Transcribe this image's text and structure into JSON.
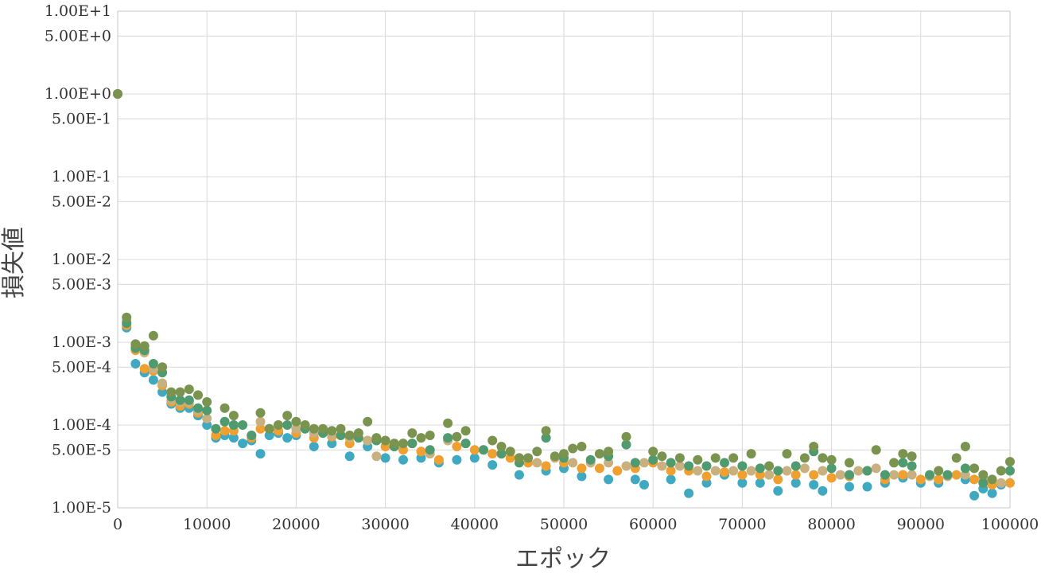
{
  "chart_data": {
    "type": "scatter",
    "xlabel": "エポック",
    "ylabel": "損失値",
    "xlim": [
      0,
      100000
    ],
    "ylim": [
      1e-05,
      10
    ],
    "y_scale": "log",
    "grid": true,
    "x_ticks": [
      0,
      10000,
      20000,
      30000,
      40000,
      50000,
      60000,
      70000,
      80000,
      90000,
      100000
    ],
    "x_tick_labels": [
      "0",
      "10000",
      "20000",
      "30000",
      "40000",
      "50000",
      "60000",
      "70000",
      "80000",
      "90000",
      "100000"
    ],
    "y_ticks": [
      10,
      5,
      1,
      0.5,
      0.1,
      0.05,
      0.01,
      0.005,
      0.001,
      0.0005,
      0.0001,
      5e-05,
      1e-05
    ],
    "y_tick_labels": [
      "1.00E+1",
      "5.00E+0",
      "1.00E+0",
      "5.00E-1",
      "1.00E-1",
      "5.00E-2",
      "1.00E-2",
      "5.00E-3",
      "1.00E-3",
      "5.00E-4",
      "1.00E-4",
      "5.00E-5",
      "1.00E-5"
    ],
    "series": [
      {
        "color": "#3fa9c1",
        "x": [
          0,
          1000,
          2000,
          3000,
          4000,
          5000,
          6000,
          7000,
          8000,
          9000,
          10000,
          11000,
          12000,
          13000,
          14000,
          15000,
          16000,
          17000,
          18000,
          19000,
          20000,
          22000,
          24000,
          26000,
          28000,
          30000,
          32000,
          34000,
          36000,
          38000,
          40000,
          42000,
          45000,
          48000,
          50000,
          52000,
          55000,
          58000,
          59000,
          62000,
          64000,
          66000,
          68000,
          70000,
          72000,
          74000,
          76000,
          78000,
          79000,
          82000,
          84000,
          86000,
          88000,
          90000,
          92000,
          95000,
          96000,
          97000,
          98000,
          99000
        ],
        "y": [
          1.0,
          0.0015,
          0.00055,
          0.00043,
          0.00035,
          0.00025,
          0.00018,
          0.00016,
          0.00016,
          0.00013,
          0.0001,
          7e-05,
          7.5e-05,
          7e-05,
          6e-05,
          6.5e-05,
          4.5e-05,
          7.5e-05,
          8e-05,
          7e-05,
          7.5e-05,
          5.5e-05,
          6e-05,
          4.2e-05,
          5.5e-05,
          4e-05,
          3.8e-05,
          4e-05,
          3.5e-05,
          3.8e-05,
          4e-05,
          3.3e-05,
          2.5e-05,
          2.8e-05,
          3e-05,
          2.4e-05,
          2.2e-05,
          2.2e-05,
          1.9e-05,
          2.2e-05,
          1.5e-05,
          2e-05,
          2.5e-05,
          2e-05,
          2e-05,
          1.6e-05,
          2e-05,
          1.9e-05,
          1.6e-05,
          1.8e-05,
          1.8e-05,
          2e-05,
          2.3e-05,
          2e-05,
          2e-05,
          2.2e-05,
          1.4e-05,
          1.7e-05,
          1.5e-05,
          1.9e-05
        ]
      },
      {
        "color": "#f0a030",
        "x": [
          0,
          1000,
          2000,
          3000,
          4000,
          5000,
          6000,
          7000,
          8000,
          9000,
          11000,
          12000,
          13000,
          15000,
          16000,
          18000,
          20000,
          22000,
          24000,
          26000,
          28000,
          30000,
          32000,
          34000,
          36000,
          38000,
          40000,
          42000,
          44000,
          46000,
          48000,
          50000,
          52000,
          54000,
          56000,
          58000,
          60000,
          62000,
          64000,
          66000,
          68000,
          70000,
          72000,
          74000,
          76000,
          78000,
          80000,
          82000,
          84000,
          86000,
          88000,
          90000,
          92000,
          94000,
          96000,
          98000,
          100000
        ],
        "y": [
          1.0,
          0.0016,
          0.0008,
          0.00048,
          0.00045,
          0.0003,
          0.00019,
          0.00017,
          0.00018,
          0.00014,
          7.5e-05,
          8.5e-05,
          8.5e-05,
          7e-05,
          9e-05,
          8.5e-05,
          8e-05,
          7e-05,
          7.2e-05,
          6e-05,
          6.5e-05,
          5.5e-05,
          5e-05,
          4.8e-05,
          3.8e-05,
          5.5e-05,
          5e-05,
          4.5e-05,
          4e-05,
          3.5e-05,
          3.2e-05,
          3.5e-05,
          3e-05,
          3e-05,
          2.8e-05,
          3e-05,
          3.5e-05,
          2.8e-05,
          2.8e-05,
          2.4e-05,
          2.7e-05,
          2.5e-05,
          2.5e-05,
          2.2e-05,
          2.5e-05,
          2.5e-05,
          2.3e-05,
          2.4e-05,
          2.8e-05,
          2.2e-05,
          2.5e-05,
          2.2e-05,
          2.2e-05,
          2.5e-05,
          2.2e-05,
          1.9e-05,
          2e-05
        ]
      },
      {
        "color": "#c8b080",
        "x": [
          0,
          1000,
          2000,
          3000,
          4000,
          5000,
          6000,
          7000,
          8000,
          9000,
          10000,
          11000,
          13000,
          15000,
          16000,
          18000,
          20000,
          22000,
          24000,
          26000,
          28000,
          29000,
          31000,
          33000,
          35000,
          37000,
          39000,
          41000,
          43000,
          45000,
          47000,
          49000,
          51000,
          53000,
          55000,
          57000,
          59000,
          61000,
          63000,
          65000,
          67000,
          69000,
          71000,
          73000,
          75000,
          77000,
          79000,
          81000,
          83000,
          85000,
          87000,
          89000,
          91000,
          93000,
          95000,
          97000,
          99000
        ],
        "y": [
          1.0,
          0.0018,
          0.0009,
          0.00075,
          0.00048,
          0.00032,
          0.0002,
          0.00019,
          0.00019,
          0.00015,
          0.00012,
          9e-05,
          0.0001,
          7.5e-05,
          0.00011,
          0.0001,
          9e-05,
          8e-05,
          7.5e-05,
          7e-05,
          6.5e-05,
          4.2e-05,
          5.5e-05,
          6e-05,
          4.5e-05,
          6.5e-05,
          6e-05,
          5e-05,
          4.5e-05,
          4e-05,
          3.5e-05,
          4e-05,
          3.5e-05,
          3.5e-05,
          3.5e-05,
          3.2e-05,
          3.5e-05,
          3.2e-05,
          3.2e-05,
          2.8e-05,
          2.8e-05,
          2.8e-05,
          2.8e-05,
          2.5e-05,
          2.8e-05,
          3e-05,
          2.8e-05,
          2.5e-05,
          2.8e-05,
          3e-05,
          2.5e-05,
          2.5e-05,
          2.4e-05,
          2.4e-05,
          2.5e-05,
          2.3e-05,
          2e-05
        ]
      },
      {
        "color": "#4f9a6f",
        "x": [
          0,
          1000,
          2000,
          3000,
          4000,
          5000,
          6000,
          7000,
          8000,
          9000,
          10000,
          11000,
          12000,
          13000,
          14000,
          15000,
          17000,
          19000,
          21000,
          23000,
          25000,
          27000,
          29000,
          31000,
          33000,
          35000,
          37000,
          39000,
          41000,
          43000,
          45000,
          48000,
          50000,
          53000,
          55000,
          57000,
          58000,
          60000,
          62000,
          64000,
          66000,
          68000,
          70000,
          72000,
          74000,
          76000,
          78000,
          80000,
          82000,
          84000,
          86000,
          88000,
          89000,
          91000,
          93000,
          95000,
          97000,
          100000
        ],
        "y": [
          1.0,
          0.0017,
          0.00085,
          0.0008,
          0.00055,
          0.00043,
          0.00022,
          0.0002,
          0.0002,
          0.00016,
          0.00015,
          9e-05,
          0.00011,
          0.0001,
          0.0001,
          7.5e-05,
          9e-05,
          0.0001,
          9e-05,
          8e-05,
          7.5e-05,
          7e-05,
          6.5e-05,
          5.5e-05,
          6e-05,
          5e-05,
          7e-05,
          6e-05,
          5e-05,
          4.5e-05,
          3.5e-05,
          7e-05,
          4e-05,
          3.8e-05,
          4.2e-05,
          5.8e-05,
          3.5e-05,
          3.8e-05,
          3.5e-05,
          3.2e-05,
          3.2e-05,
          3.5e-05,
          3.2e-05,
          3e-05,
          2.8e-05,
          3.2e-05,
          4.8e-05,
          3e-05,
          2.5e-05,
          2.8e-05,
          2.5e-05,
          3.5e-05,
          3.2e-05,
          2.5e-05,
          2.5e-05,
          3e-05,
          2e-05,
          2.8e-05
        ]
      },
      {
        "color": "#7a9450",
        "x": [
          0,
          1000,
          2000,
          3000,
          4000,
          5000,
          6000,
          7000,
          8000,
          9000,
          10000,
          12000,
          13000,
          16000,
          17000,
          18000,
          19000,
          20000,
          21000,
          22000,
          23000,
          24000,
          25000,
          26000,
          27000,
          28000,
          29000,
          30000,
          31000,
          32000,
          33000,
          34000,
          35000,
          37000,
          38000,
          39000,
          42000,
          43000,
          44000,
          45000,
          46000,
          47000,
          48000,
          49000,
          50000,
          51000,
          52000,
          54000,
          55000,
          57000,
          60000,
          61000,
          63000,
          65000,
          67000,
          69000,
          71000,
          73000,
          75000,
          77000,
          78000,
          79000,
          80000,
          82000,
          85000,
          87000,
          88000,
          89000,
          92000,
          94000,
          95000,
          96000,
          97000,
          98000,
          99000,
          100000
        ],
        "y": [
          1.0,
          0.002,
          0.00095,
          0.0009,
          0.0012,
          0.0005,
          0.00025,
          0.00025,
          0.00027,
          0.00023,
          0.00019,
          0.00016,
          0.00013,
          0.00014,
          9e-05,
          0.0001,
          0.00013,
          0.00011,
          0.0001,
          9e-05,
          9e-05,
          8.5e-05,
          9e-05,
          7.5e-05,
          8e-05,
          0.00011,
          7e-05,
          6.5e-05,
          6e-05,
          6e-05,
          8e-05,
          7e-05,
          7.5e-05,
          0.000105,
          7.2e-05,
          8.5e-05,
          6.5e-05,
          5.5e-05,
          4.8e-05,
          4e-05,
          4e-05,
          4.8e-05,
          8.5e-05,
          4.2e-05,
          4.5e-05,
          5.2e-05,
          5.5e-05,
          4.5e-05,
          4.8e-05,
          7.2e-05,
          4.8e-05,
          4.2e-05,
          4e-05,
          3.8e-05,
          4e-05,
          4e-05,
          4.5e-05,
          3.2e-05,
          4.5e-05,
          4e-05,
          5.5e-05,
          4e-05,
          3.8e-05,
          3.5e-05,
          5e-05,
          3.5e-05,
          4.5e-05,
          4.2e-05,
          2.8e-05,
          4e-05,
          5.5e-05,
          3e-05,
          2.5e-05,
          2.2e-05,
          2.8e-05,
          3.6e-05
        ]
      }
    ]
  }
}
